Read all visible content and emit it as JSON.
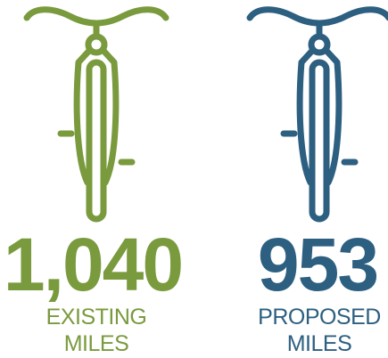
{
  "items": [
    {
      "value": "1,040",
      "label": [
        "EXISTING",
        "MILES"
      ]
    },
    {
      "value": "953",
      "label": [
        "PROPOSED",
        "MILES"
      ]
    }
  ]
}
